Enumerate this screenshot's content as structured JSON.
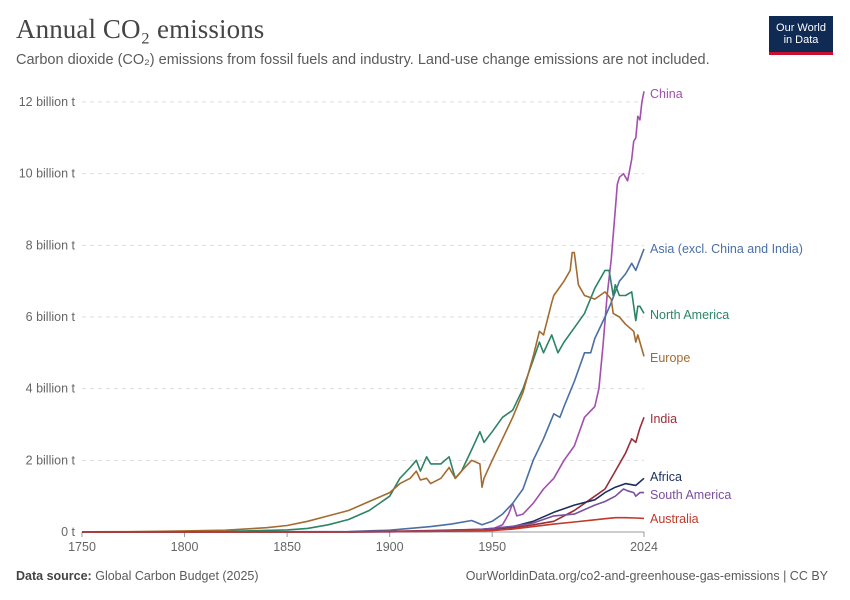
{
  "header": {
    "title": "Annual CO₂ emissions",
    "subtitle": "Carbon dioxide (CO₂) emissions from fossil fuels and industry. Land-use change emissions are not included."
  },
  "logo": {
    "line1": "Our World",
    "line2": "in Data"
  },
  "footer": {
    "source_label": "Data source:",
    "source_value": "Global Carbon Budget (2025)",
    "right": "OurWorldinData.org/co2-and-greenhouse-gas-emissions | CC BY"
  },
  "chart_data": {
    "type": "line",
    "unit": "t",
    "xlim": [
      1750,
      2024
    ],
    "ylim": [
      0,
      12000000000
    ],
    "x_ticks": [
      1750,
      1800,
      1850,
      1900,
      1950,
      2024
    ],
    "y_ticks": [
      {
        "value": 0,
        "label": "0 t"
      },
      {
        "value": 2000000000,
        "label": "2 billion t"
      },
      {
        "value": 4000000000,
        "label": "4 billion t"
      },
      {
        "value": 6000000000,
        "label": "6 billion t"
      },
      {
        "value": 8000000000,
        "label": "8 billion t"
      },
      {
        "value": 10000000000,
        "label": "10 billion t"
      },
      {
        "value": 12000000000,
        "label": "12 billion t"
      }
    ],
    "grid": "horizontal-dashed",
    "legend": "inline-right",
    "series": [
      {
        "name": "China",
        "color": "#a24fae",
        "points": [
          [
            1750,
            0
          ],
          [
            1900,
            0
          ],
          [
            1950,
            0.08
          ],
          [
            1955,
            0.2
          ],
          [
            1958,
            0.5
          ],
          [
            1960,
            0.8
          ],
          [
            1962,
            0.45
          ],
          [
            1965,
            0.5
          ],
          [
            1970,
            0.8
          ],
          [
            1975,
            1.2
          ],
          [
            1980,
            1.5
          ],
          [
            1985,
            2.0
          ],
          [
            1990,
            2.4
          ],
          [
            1995,
            3.2
          ],
          [
            2000,
            3.5
          ],
          [
            2002,
            4.0
          ],
          [
            2004,
            5.2
          ],
          [
            2006,
            6.6
          ],
          [
            2008,
            7.6
          ],
          [
            2010,
            9.0
          ],
          [
            2011,
            9.7
          ],
          [
            2012,
            9.9
          ],
          [
            2014,
            10.0
          ],
          [
            2016,
            9.8
          ],
          [
            2018,
            10.4
          ],
          [
            2019,
            10.9
          ],
          [
            2020,
            11.0
          ],
          [
            2021,
            11.6
          ],
          [
            2022,
            11.5
          ],
          [
            2023,
            12.0
          ],
          [
            2024,
            12.3
          ]
        ]
      },
      {
        "name": "Asia (excl. China and India)",
        "color": "#4a6fa5",
        "points": [
          [
            1750,
            0
          ],
          [
            1880,
            0.01
          ],
          [
            1900,
            0.05
          ],
          [
            1920,
            0.15
          ],
          [
            1930,
            0.22
          ],
          [
            1940,
            0.32
          ],
          [
            1945,
            0.2
          ],
          [
            1950,
            0.3
          ],
          [
            1955,
            0.5
          ],
          [
            1960,
            0.8
          ],
          [
            1965,
            1.2
          ],
          [
            1970,
            2.0
          ],
          [
            1975,
            2.6
          ],
          [
            1980,
            3.3
          ],
          [
            1983,
            3.2
          ],
          [
            1985,
            3.5
          ],
          [
            1990,
            4.2
          ],
          [
            1995,
            5.0
          ],
          [
            1998,
            5.0
          ],
          [
            2000,
            5.4
          ],
          [
            2005,
            6.0
          ],
          [
            2008,
            6.4
          ],
          [
            2010,
            6.7
          ],
          [
            2012,
            7.0
          ],
          [
            2015,
            7.2
          ],
          [
            2018,
            7.5
          ],
          [
            2020,
            7.3
          ],
          [
            2022,
            7.6
          ],
          [
            2024,
            7.9
          ]
        ]
      },
      {
        "name": "North America",
        "color": "#2c8465",
        "points": [
          [
            1750,
            0
          ],
          [
            1800,
            0.01
          ],
          [
            1830,
            0.03
          ],
          [
            1850,
            0.06
          ],
          [
            1860,
            0.1
          ],
          [
            1870,
            0.2
          ],
          [
            1880,
            0.35
          ],
          [
            1890,
            0.6
          ],
          [
            1900,
            1.0
          ],
          [
            1905,
            1.5
          ],
          [
            1910,
            1.8
          ],
          [
            1913,
            2.0
          ],
          [
            1915,
            1.7
          ],
          [
            1918,
            2.1
          ],
          [
            1920,
            1.9
          ],
          [
            1925,
            1.9
          ],
          [
            1929,
            2.1
          ],
          [
            1932,
            1.5
          ],
          [
            1935,
            1.7
          ],
          [
            1940,
            2.3
          ],
          [
            1944,
            2.8
          ],
          [
            1946,
            2.5
          ],
          [
            1950,
            2.8
          ],
          [
            1955,
            3.2
          ],
          [
            1960,
            3.4
          ],
          [
            1965,
            4.0
          ],
          [
            1970,
            4.8
          ],
          [
            1973,
            5.3
          ],
          [
            1975,
            5.0
          ],
          [
            1979,
            5.5
          ],
          [
            1982,
            5.0
          ],
          [
            1985,
            5.3
          ],
          [
            1990,
            5.7
          ],
          [
            1995,
            6.1
          ],
          [
            2000,
            6.8
          ],
          [
            2005,
            7.3
          ],
          [
            2007,
            7.3
          ],
          [
            2009,
            6.6
          ],
          [
            2010,
            6.9
          ],
          [
            2012,
            6.6
          ],
          [
            2015,
            6.6
          ],
          [
            2018,
            6.7
          ],
          [
            2020,
            5.9
          ],
          [
            2021,
            6.3
          ],
          [
            2022,
            6.3
          ],
          [
            2024,
            6.1
          ]
        ]
      },
      {
        "name": "Europe",
        "color": "#a36b2f",
        "points": [
          [
            1750,
            0.005
          ],
          [
            1780,
            0.01
          ],
          [
            1800,
            0.03
          ],
          [
            1820,
            0.05
          ],
          [
            1840,
            0.12
          ],
          [
            1850,
            0.18
          ],
          [
            1860,
            0.3
          ],
          [
            1870,
            0.45
          ],
          [
            1880,
            0.6
          ],
          [
            1890,
            0.85
          ],
          [
            1900,
            1.1
          ],
          [
            1905,
            1.35
          ],
          [
            1910,
            1.5
          ],
          [
            1913,
            1.7
          ],
          [
            1915,
            1.45
          ],
          [
            1918,
            1.5
          ],
          [
            1920,
            1.35
          ],
          [
            1925,
            1.5
          ],
          [
            1929,
            1.8
          ],
          [
            1932,
            1.5
          ],
          [
            1935,
            1.7
          ],
          [
            1940,
            2.0
          ],
          [
            1944,
            1.9
          ],
          [
            1945,
            1.25
          ],
          [
            1946,
            1.5
          ],
          [
            1950,
            2.0
          ],
          [
            1955,
            2.6
          ],
          [
            1960,
            3.2
          ],
          [
            1965,
            3.9
          ],
          [
            1970,
            4.9
          ],
          [
            1973,
            5.6
          ],
          [
            1975,
            5.5
          ],
          [
            1979,
            6.4
          ],
          [
            1980,
            6.6
          ],
          [
            1985,
            7.0
          ],
          [
            1988,
            7.3
          ],
          [
            1989,
            7.8
          ],
          [
            1990,
            7.8
          ],
          [
            1992,
            6.9
          ],
          [
            1995,
            6.6
          ],
          [
            2000,
            6.5
          ],
          [
            2005,
            6.7
          ],
          [
            2008,
            6.5
          ],
          [
            2009,
            6.1
          ],
          [
            2012,
            6.0
          ],
          [
            2015,
            5.8
          ],
          [
            2019,
            5.6
          ],
          [
            2020,
            5.3
          ],
          [
            2021,
            5.5
          ],
          [
            2022,
            5.3
          ],
          [
            2024,
            4.9
          ]
        ]
      },
      {
        "name": "India",
        "color": "#9a2d38",
        "points": [
          [
            1750,
            0
          ],
          [
            1880,
            0.005
          ],
          [
            1900,
            0.02
          ],
          [
            1920,
            0.04
          ],
          [
            1940,
            0.07
          ],
          [
            1950,
            0.08
          ],
          [
            1960,
            0.12
          ],
          [
            1970,
            0.2
          ],
          [
            1980,
            0.3
          ],
          [
            1990,
            0.6
          ],
          [
            2000,
            1.0
          ],
          [
            2005,
            1.2
          ],
          [
            2010,
            1.7
          ],
          [
            2015,
            2.2
          ],
          [
            2018,
            2.6
          ],
          [
            2020,
            2.5
          ],
          [
            2021,
            2.7
          ],
          [
            2022,
            2.9
          ],
          [
            2024,
            3.2
          ]
        ]
      },
      {
        "name": "Africa",
        "color": "#1a2f5e",
        "points": [
          [
            1750,
            0
          ],
          [
            1880,
            0.002
          ],
          [
            1900,
            0.01
          ],
          [
            1920,
            0.02
          ],
          [
            1940,
            0.05
          ],
          [
            1950,
            0.1
          ],
          [
            1960,
            0.15
          ],
          [
            1970,
            0.3
          ],
          [
            1980,
            0.55
          ],
          [
            1990,
            0.75
          ],
          [
            2000,
            0.9
          ],
          [
            2005,
            1.1
          ],
          [
            2010,
            1.25
          ],
          [
            2015,
            1.35
          ],
          [
            2020,
            1.3
          ],
          [
            2024,
            1.5
          ]
        ]
      },
      {
        "name": "South America",
        "color": "#7a4f9e",
        "points": [
          [
            1750,
            0
          ],
          [
            1880,
            0.002
          ],
          [
            1900,
            0.01
          ],
          [
            1920,
            0.03
          ],
          [
            1940,
            0.05
          ],
          [
            1950,
            0.1
          ],
          [
            1960,
            0.16
          ],
          [
            1970,
            0.25
          ],
          [
            1980,
            0.45
          ],
          [
            1990,
            0.5
          ],
          [
            2000,
            0.75
          ],
          [
            2005,
            0.85
          ],
          [
            2010,
            1.0
          ],
          [
            2014,
            1.2
          ],
          [
            2016,
            1.15
          ],
          [
            2019,
            1.1
          ],
          [
            2020,
            1.0
          ],
          [
            2022,
            1.1
          ],
          [
            2024,
            1.1
          ]
        ]
      },
      {
        "name": "Australia",
        "color": "#c0392b",
        "points": [
          [
            1750,
            0
          ],
          [
            1870,
            0.002
          ],
          [
            1900,
            0.01
          ],
          [
            1920,
            0.02
          ],
          [
            1940,
            0.03
          ],
          [
            1950,
            0.04
          ],
          [
            1960,
            0.08
          ],
          [
            1970,
            0.15
          ],
          [
            1980,
            0.22
          ],
          [
            1990,
            0.28
          ],
          [
            2000,
            0.34
          ],
          [
            2005,
            0.37
          ],
          [
            2010,
            0.4
          ],
          [
            2015,
            0.4
          ],
          [
            2020,
            0.39
          ],
          [
            2024,
            0.38
          ]
        ]
      }
    ]
  }
}
